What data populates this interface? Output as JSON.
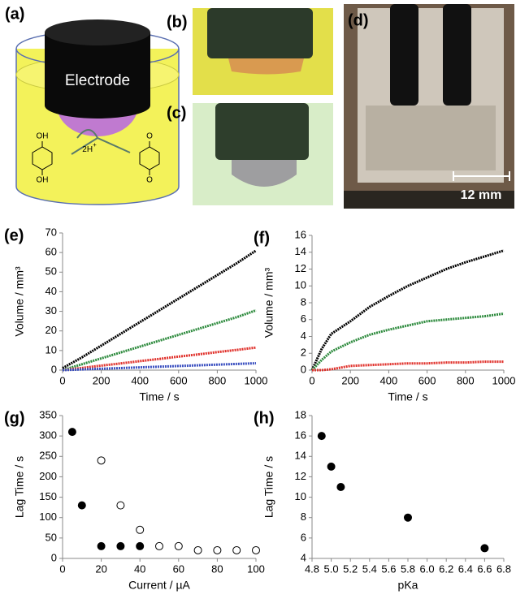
{
  "schematic": {
    "label": "(a)",
    "electrode": "Electrode",
    "proton": "2H",
    "charge": "+",
    "oh_top": "OH",
    "oh_bottom": "OH",
    "o_top": "O",
    "o_bottom": "O"
  },
  "photos": {
    "b": "(b)",
    "c": "(c)",
    "d": "(d)",
    "scale": "12 mm"
  },
  "chart_data": [
    {
      "type": "line",
      "label": "(e)",
      "xlabel": "Time / s",
      "ylabel": "Volume / mm³",
      "x": [
        0,
        100,
        200,
        300,
        400,
        500,
        600,
        700,
        800,
        900,
        1000
      ],
      "series": [
        {
          "color": "#000000",
          "values": [
            1,
            6.5,
            12.5,
            18.5,
            24.5,
            30.5,
            36.5,
            42.5,
            48.5,
            54.5,
            61
          ]
        },
        {
          "color": "#2e8b3e",
          "values": [
            0,
            3,
            6,
            9,
            12,
            15,
            18,
            21,
            24,
            27,
            30.5
          ]
        },
        {
          "color": "#e0302a",
          "values": [
            0,
            1.1,
            2.3,
            3.4,
            4.6,
            5.7,
            6.9,
            8,
            9.2,
            10.3,
            11.5
          ]
        },
        {
          "color": "#3a4fc0",
          "values": [
            0,
            0.35,
            0.7,
            1.05,
            1.4,
            1.75,
            2.1,
            2.45,
            2.8,
            3.15,
            3.5
          ]
        }
      ],
      "xlim": [
        0,
        1000
      ],
      "xticks": [
        0,
        200,
        400,
        600,
        800,
        1000
      ],
      "ylim": [
        0,
        70
      ],
      "yticks": [
        0,
        10,
        20,
        30,
        40,
        50,
        60,
        70
      ]
    },
    {
      "type": "line",
      "label": "(f)",
      "xlabel": "Time / s",
      "ylabel": "Volume / mm³",
      "x": [
        0,
        50,
        100,
        200,
        300,
        400,
        500,
        600,
        700,
        800,
        900,
        1000
      ],
      "series": [
        {
          "color": "#000000",
          "values": [
            0,
            2.5,
            4.3,
            5.8,
            7.5,
            8.8,
            10,
            11,
            12,
            12.8,
            13.5,
            14.2
          ]
        },
        {
          "color": "#2e8b3e",
          "values": [
            0,
            1.2,
            2.2,
            3.3,
            4.2,
            4.8,
            5.3,
            5.8,
            6,
            6.2,
            6.4,
            6.7
          ]
        },
        {
          "color": "#e0302a",
          "values": [
            0,
            0,
            0.1,
            0.5,
            0.6,
            0.7,
            0.8,
            0.8,
            0.9,
            0.9,
            1,
            1
          ]
        }
      ],
      "xlim": [
        0,
        1000
      ],
      "xticks": [
        0,
        200,
        400,
        600,
        800,
        1000
      ],
      "ylim": [
        0,
        16
      ],
      "yticks": [
        0,
        2,
        4,
        6,
        8,
        10,
        12,
        14,
        16
      ]
    },
    {
      "type": "scatter",
      "label": "(g)",
      "xlabel": "Current / µA",
      "ylabel": "Lag Time / s",
      "series": [
        {
          "color": "#000000",
          "filled": true,
          "x": [
            5,
            10,
            20,
            30,
            40
          ],
          "values": [
            310,
            130,
            30,
            30,
            30
          ]
        },
        {
          "color": "#000000",
          "filled": false,
          "x": [
            20,
            30,
            40,
            50,
            60,
            70,
            80,
            90,
            100
          ],
          "values": [
            240,
            130,
            70,
            30,
            30,
            20,
            20,
            20,
            20
          ]
        }
      ],
      "xlim": [
        0,
        100
      ],
      "xticks": [
        0,
        20,
        40,
        60,
        80,
        100
      ],
      "ylim": [
        0,
        350
      ],
      "yticks": [
        0,
        50,
        100,
        150,
        200,
        250,
        300,
        350
      ]
    },
    {
      "type": "scatter",
      "label": "(h)",
      "xlabel": "pKa",
      "ylabel": "Lag Time / s",
      "series": [
        {
          "color": "#000000",
          "filled": true,
          "x": [
            4.9,
            5.0,
            5.1,
            5.8,
            6.6
          ],
          "values": [
            16,
            13,
            11,
            8,
            5
          ]
        }
      ],
      "xlim": [
        4.8,
        6.8
      ],
      "xticks": [
        4.8,
        {
          "value": 5,
          "label": "5.0"
        },
        5.2,
        5.4,
        5.6,
        5.8,
        {
          "value": 6,
          "label": "6.0"
        },
        6.2,
        6.4,
        6.6,
        6.8
      ],
      "ylim": [
        4,
        18
      ],
      "yticks": [
        4,
        6,
        8,
        10,
        12,
        14,
        16,
        18
      ]
    }
  ]
}
